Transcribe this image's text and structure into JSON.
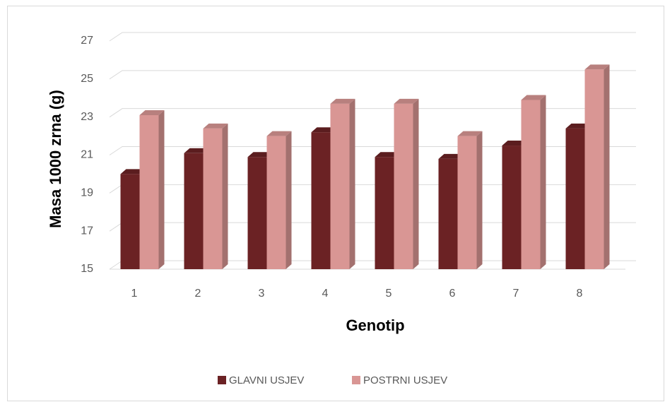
{
  "chart_data": {
    "type": "bar3d",
    "y_label": "Masa 1000 zrna (g)",
    "x_label": "Genotip",
    "categories": [
      "1",
      "2",
      "3",
      "4",
      "5",
      "6",
      "7",
      "8"
    ],
    "series": [
      {
        "name": "GLAVNI USJEV",
        "color": "#6b2224",
        "values": [
          20.0,
          21.1,
          20.9,
          22.2,
          20.9,
          20.8,
          21.5,
          22.4
        ]
      },
      {
        "name": "POSTRNI USJEV",
        "color": "#d99694",
        "values": [
          23.1,
          22.4,
          22.0,
          23.7,
          23.7,
          22.0,
          23.9,
          25.5
        ]
      }
    ],
    "ylim": [
      15,
      27
    ],
    "yticks": [
      15,
      17,
      19,
      21,
      23,
      25,
      27
    ],
    "grid": true,
    "legend": "bottom"
  }
}
